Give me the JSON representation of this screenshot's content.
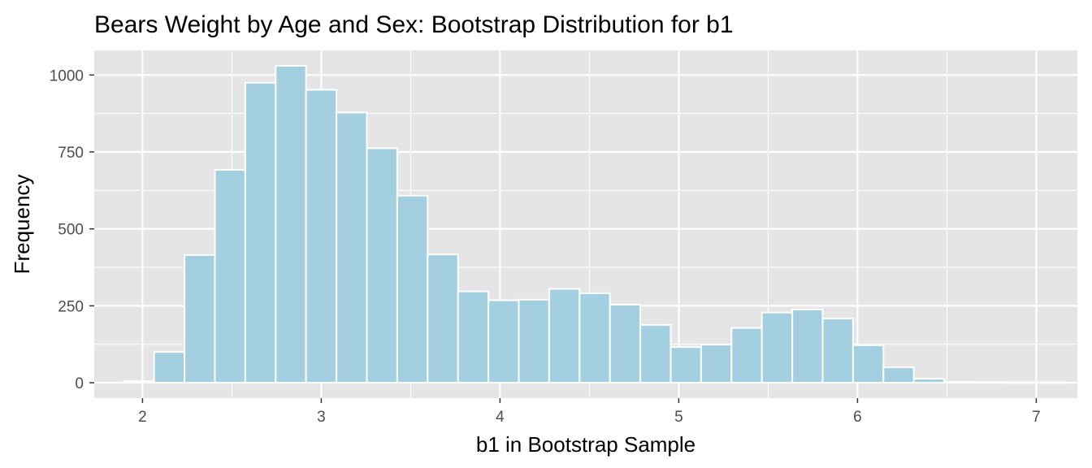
{
  "chart_data": {
    "type": "bar",
    "title": "Bears Weight by Age and Sex: Bootstrap Distribution for b1",
    "xlabel": "b1 in Bootstrap Sample",
    "ylabel": "Frequency",
    "xlim": [
      1.73,
      7.23
    ],
    "ylim": [
      -50,
      1080
    ],
    "x_ticks": [
      2,
      3,
      4,
      5,
      6,
      7
    ],
    "y_ticks": [
      0,
      250,
      500,
      750,
      1000
    ],
    "bin_width": 0.17,
    "bin_centers": [
      1.98,
      2.15,
      2.32,
      2.49,
      2.66,
      2.83,
      3.0,
      3.17,
      3.34,
      3.51,
      3.68,
      3.85,
      4.02,
      4.19,
      4.36,
      4.53,
      4.7,
      4.87,
      5.04,
      5.21,
      5.38,
      5.55,
      5.72,
      5.89,
      6.06,
      6.23,
      6.4,
      6.57,
      6.74,
      6.91,
      7.08
    ],
    "values": [
      5,
      100,
      415,
      692,
      975,
      1030,
      952,
      878,
      762,
      608,
      417,
      297,
      268,
      270,
      305,
      291,
      254,
      188,
      116,
      124,
      178,
      228,
      238,
      209,
      122,
      50,
      13,
      3,
      2,
      1,
      1
    ],
    "fill_color": "#a4cfe1",
    "bar_outline_color": "#ffffff",
    "panel_color": "#e5e5e5",
    "grid_color": "#ffffff",
    "grid": true,
    "legend": "none"
  }
}
